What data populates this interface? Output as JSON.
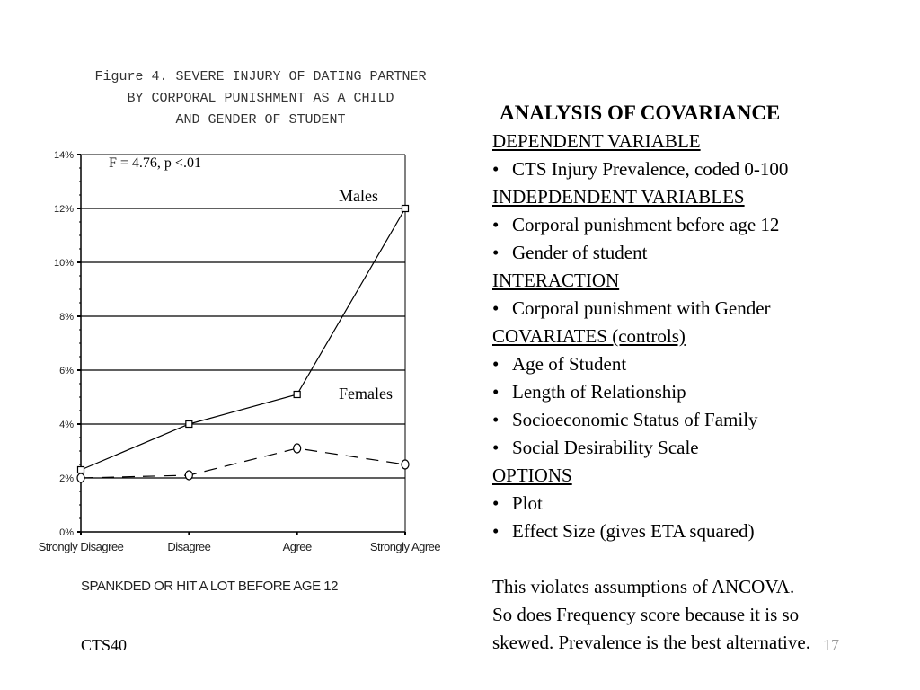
{
  "chart_data": {
    "type": "line",
    "title": [
      "Figure 4. SEVERE INJURY OF DATING PARTNER",
      "BY CORPORAL PUNISHMENT AS A CHILD",
      "AND GENDER OF STUDENT"
    ],
    "xlabel": "SPANKDED OR HIT A LOT BEFORE AGE 12",
    "ylabel": "",
    "categories": [
      "Strongly Disagree",
      "Disagree",
      "Agree",
      "Strongly Agree"
    ],
    "y_ticks": [
      "0%",
      "2%",
      "4%",
      "6%",
      "8%",
      "10%",
      "12%",
      "14%"
    ],
    "ylim": [
      0,
      14
    ],
    "grid": true,
    "annotation": "F = 4.76, p <.01",
    "series": [
      {
        "name": "Males",
        "values": [
          2.3,
          4.0,
          5.1,
          12.0
        ],
        "marker": "square",
        "dash": "solid"
      },
      {
        "name": "Females",
        "values": [
          2.0,
          2.1,
          3.1,
          2.5
        ],
        "marker": "circle",
        "dash": "dashed"
      }
    ]
  },
  "panel": {
    "heading": "ANALYSIS OF COVARIANCE",
    "lines": [
      {
        "kind": "section",
        "text": "DEPENDENT  VARIABLE"
      },
      {
        "kind": "bullet",
        "text": "CTS Injury Prevalence, coded 0-100"
      },
      {
        "kind": "section",
        "text": "INDEPDENDENT VARIABLES"
      },
      {
        "kind": "bullet",
        "text": "Corporal punishment before age 12"
      },
      {
        "kind": "bullet",
        "text": "Gender of student"
      },
      {
        "kind": "section",
        "text": "INTERACTION"
      },
      {
        "kind": "bullet",
        "text": "Corporal punishment with Gender"
      },
      {
        "kind": "section",
        "text": "COVARIATES (controls)"
      },
      {
        "kind": "bullet",
        "text": "Age of Student"
      },
      {
        "kind": "bullet",
        "text": "Length of Relationship"
      },
      {
        "kind": "bullet",
        "text": "Socioeconomic Status of Family"
      },
      {
        "kind": "bullet",
        "text": "Social Desirability Scale"
      },
      {
        "kind": "section",
        "text": "OPTIONS"
      },
      {
        "kind": "bullet",
        "text": "Plot"
      },
      {
        "kind": "bullet",
        "text": "Effect Size (gives ETA squared)"
      }
    ],
    "note": [
      "This violates assumptions of ANCOVA.",
      "So does Frequency score because it is so",
      "skewed.  Prevalence is the best alternative."
    ]
  },
  "footer": {
    "left": "CTS40",
    "right": "17"
  }
}
